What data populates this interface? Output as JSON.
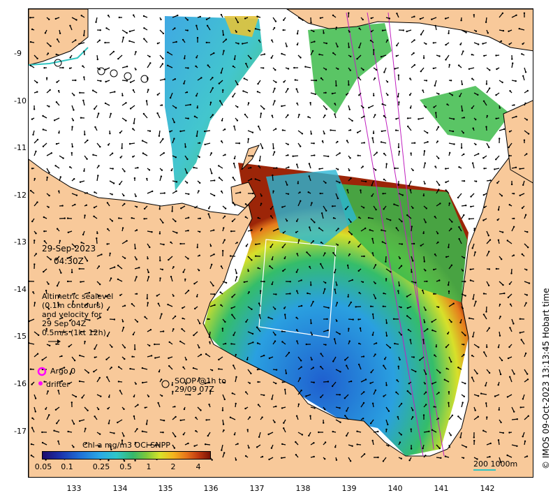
{
  "map": {
    "date_line1": "29-Sep-2023",
    "date_line2": "04:30Z",
    "altimetry_text": [
      "Altimetric sealevel",
      "(0.1m contours)",
      "and velocity for",
      "29 Sep 04Z",
      "0.5m/s (1kt 12h)"
    ],
    "argo_label": "Argo 0",
    "drifter_label": "drifter",
    "soop_label_line1": "SOOP @1h to",
    "soop_label_line2": "29/09 07Z",
    "credit": "© IMOS 09-Oct-2023 13:13:45 Hobart time",
    "scale_label": "200  1000m",
    "colorbar": {
      "title": "Chl-a mg/m3 OCi SNPP",
      "ticks": [
        "0.05",
        "0.1",
        "0.25",
        "0.5",
        "1",
        "2",
        "4"
      ]
    },
    "y_ticks": [
      "-9",
      "-10",
      "-11",
      "-12",
      "-13",
      "-14",
      "-15",
      "-16",
      "-17"
    ],
    "x_ticks": [
      "133",
      "134",
      "135",
      "136",
      "137",
      "138",
      "139",
      "140",
      "141",
      "142"
    ],
    "colors": {
      "land": "#f8c99a",
      "ocean": "#ffffff",
      "argo": "#ff00ff",
      "drifter": "#ff00ff",
      "soop_track": "#c020c0",
      "contour": "#2ec4c0"
    }
  }
}
